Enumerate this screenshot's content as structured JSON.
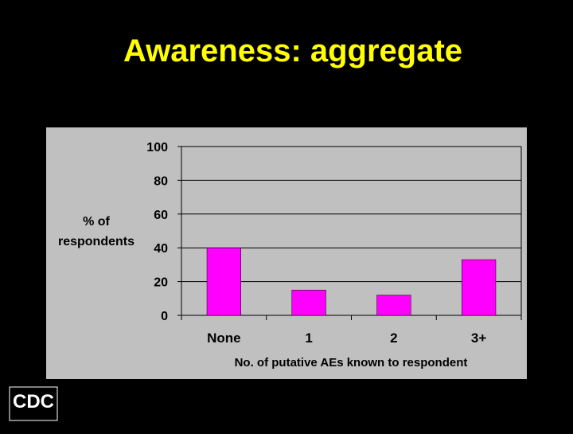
{
  "title": "Awareness: aggregate",
  "logo": "CDC",
  "chart_data": {
    "type": "bar",
    "ylabel": [
      "% of",
      "respondents"
    ],
    "xlabel": "No. of putative AEs known to respondent",
    "categories": [
      "None",
      "1",
      "2",
      "3+"
    ],
    "values": [
      40,
      15,
      12,
      33
    ],
    "color": "#ff00ff",
    "ylim": [
      0,
      100
    ],
    "yticks": [
      0,
      20,
      40,
      60,
      80,
      100
    ],
    "grid": true
  }
}
